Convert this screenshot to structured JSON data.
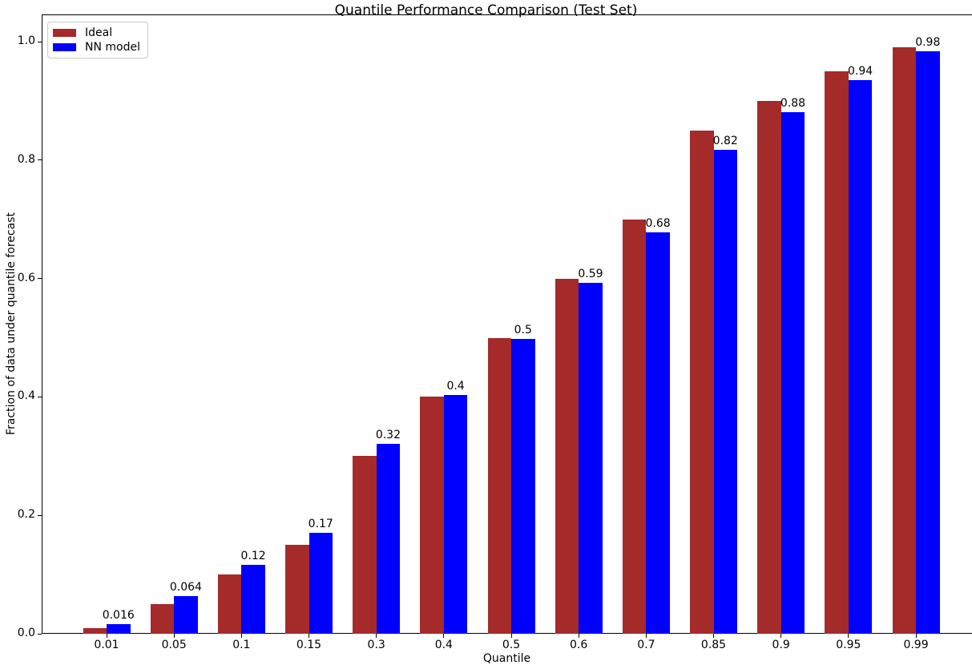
{
  "figure": {
    "background": "#ffffff"
  },
  "chart_data": {
    "type": "bar",
    "title": "Quantile Performance Comparison (Test Set)",
    "xlabel": "Quantile",
    "ylabel": "Fraction of data under quantile forecast",
    "categories": [
      "0.01",
      "0.05",
      "0.1",
      "0.15",
      "0.3",
      "0.4",
      "0.5",
      "0.6",
      "0.7",
      "0.85",
      "0.9",
      "0.95",
      "0.99"
    ],
    "series": [
      {
        "name": "Ideal",
        "color": "#a52a2a",
        "values": [
          0.01,
          0.05,
          0.1,
          0.15,
          0.3,
          0.4,
          0.5,
          0.6,
          0.7,
          0.85,
          0.9,
          0.95,
          0.99
        ]
      },
      {
        "name": "NN model",
        "color": "#0000ff",
        "values": [
          0.016,
          0.064,
          0.117,
          0.171,
          0.321,
          0.403,
          0.498,
          0.593,
          0.678,
          0.817,
          0.881,
          0.935,
          0.984
        ],
        "bar_labels": [
          "0.016",
          "0.064",
          "0.12",
          "0.17",
          "0.32",
          "0.4",
          "0.5",
          "0.59",
          "0.68",
          "0.82",
          "0.88",
          "0.94",
          "0.98"
        ]
      }
    ],
    "yticks": [
      "0.0",
      "0.2",
      "0.4",
      "0.6",
      "0.8",
      "1.0"
    ],
    "ylim": [
      0,
      1.046
    ],
    "grid": false,
    "legend": {
      "position": "upper left",
      "entries": [
        "Ideal",
        "NN model"
      ]
    }
  }
}
